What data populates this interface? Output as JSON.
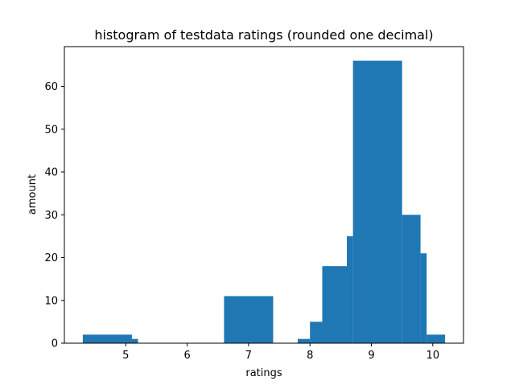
{
  "chart_data": {
    "type": "bar",
    "title": "histogram of testdata ratings (rounded one decimal)",
    "xlabel": "ratings",
    "ylabel": "amount",
    "xlim": [
      4.0,
      10.5
    ],
    "ylim": [
      0,
      69.3
    ],
    "x_ticks": [
      5,
      6,
      7,
      8,
      9,
      10
    ],
    "y_ticks": [
      0,
      10,
      20,
      30,
      40,
      50,
      60
    ],
    "grid": false,
    "bar_color": "#1f77b4",
    "bins": [
      {
        "x0": 4.3,
        "x1": 5.1,
        "value": 2
      },
      {
        "x0": 5.1,
        "x1": 5.2,
        "value": 1
      },
      {
        "x0": 6.6,
        "x1": 7.4,
        "value": 11
      },
      {
        "x0": 7.8,
        "x1": 8.0,
        "value": 1
      },
      {
        "x0": 8.0,
        "x1": 8.2,
        "value": 5
      },
      {
        "x0": 8.2,
        "x1": 8.6,
        "value": 18
      },
      {
        "x0": 8.6,
        "x1": 8.7,
        "value": 25
      },
      {
        "x0": 8.7,
        "x1": 9.5,
        "value": 66
      },
      {
        "x0": 9.5,
        "x1": 9.8,
        "value": 30
      },
      {
        "x0": 9.8,
        "x1": 9.9,
        "value": 21
      },
      {
        "x0": 9.9,
        "x1": 10.2,
        "value": 2
      }
    ]
  }
}
